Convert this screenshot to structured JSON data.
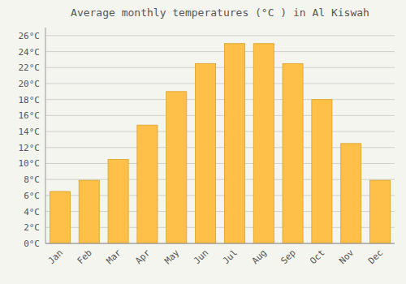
{
  "chart_data": {
    "type": "bar",
    "title": "Average monthly temperatures (°C ) in Al Kiswah",
    "categories": [
      "Jan",
      "Feb",
      "Mar",
      "Apr",
      "May",
      "Jun",
      "Jul",
      "Aug",
      "Sep",
      "Oct",
      "Nov",
      "Dec"
    ],
    "values": [
      6.5,
      7.9,
      10.5,
      14.8,
      19.0,
      22.5,
      25.0,
      25.0,
      22.5,
      18.0,
      12.5,
      7.9
    ],
    "color": "#FFC04A",
    "ylim": [
      0,
      27
    ],
    "yticks": [
      {
        "value": 0,
        "label": "0°C"
      },
      {
        "value": 2,
        "label": "2°C"
      },
      {
        "value": 4,
        "label": "4°C"
      },
      {
        "value": 6,
        "label": "6°C"
      },
      {
        "value": 8,
        "label": "8°C"
      },
      {
        "value": 10,
        "label": "10°C"
      },
      {
        "value": 12,
        "label": "12°C"
      },
      {
        "value": 14,
        "label": "14°C"
      },
      {
        "value": 16,
        "label": "16°C"
      },
      {
        "value": 18,
        "label": "18°C"
      },
      {
        "value": 20,
        "label": "20°C"
      },
      {
        "value": 22,
        "label": "22°C"
      },
      {
        "value": 24,
        "label": "24°C"
      },
      {
        "value": 26,
        "label": "26°C"
      }
    ],
    "grid": true
  }
}
